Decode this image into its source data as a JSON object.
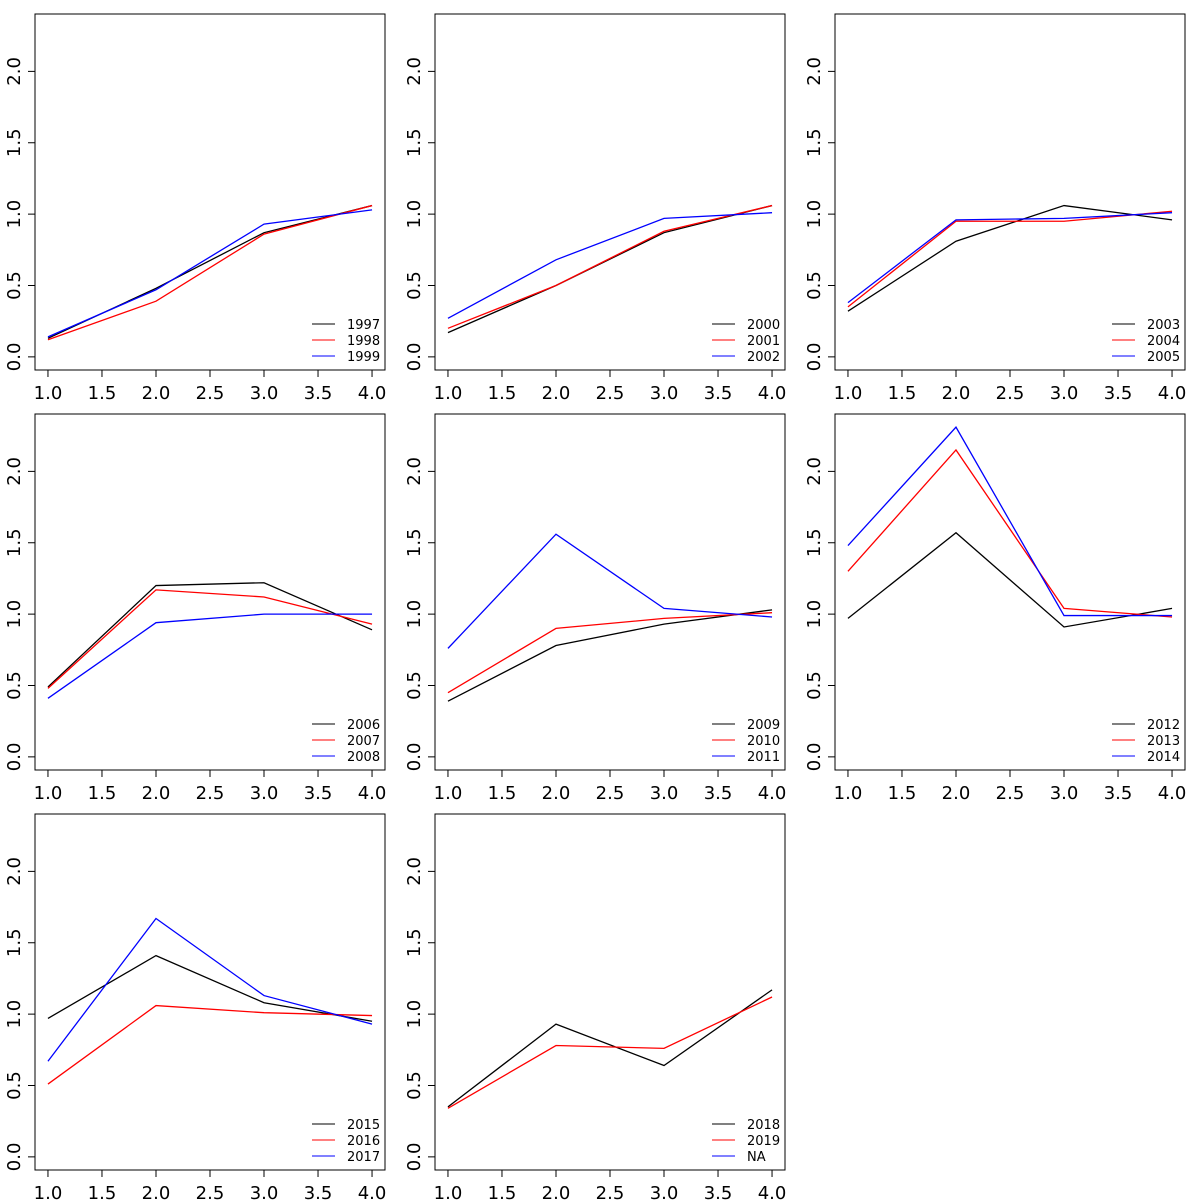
{
  "chart_data": [
    {
      "type": "line",
      "x": [
        1,
        2,
        3,
        4
      ],
      "xlim": [
        0.88,
        4.12
      ],
      "ylim": [
        -0.092,
        2.402
      ],
      "xticks": [
        {
          "value": 1,
          "label": "1.0"
        },
        1.5,
        {
          "value": 2,
          "label": "2.0"
        },
        2.5,
        {
          "value": 3,
          "label": "3.0"
        },
        3.5,
        {
          "value": 4,
          "label": "4.0"
        }
      ],
      "yticks": [
        {
          "value": 0,
          "label": "0.0"
        },
        0.5,
        {
          "value": 1,
          "label": "1.0"
        },
        1.5,
        {
          "value": 2,
          "label": "2.0"
        }
      ],
      "legend": "bottomright",
      "series": [
        {
          "name": "1997",
          "color": "#000000",
          "values": [
            0.13,
            0.48,
            0.87,
            1.06
          ]
        },
        {
          "name": "1998",
          "color": "#ff0000",
          "values": [
            0.12,
            0.39,
            0.86,
            1.06
          ]
        },
        {
          "name": "1999",
          "color": "#0000ff",
          "values": [
            0.14,
            0.47,
            0.93,
            1.03
          ]
        }
      ]
    },
    {
      "type": "line",
      "x": [
        1,
        2,
        3,
        4
      ],
      "xlim": [
        0.88,
        4.12
      ],
      "ylim": [
        -0.092,
        2.402
      ],
      "xticks": [
        {
          "value": 1,
          "label": "1.0"
        },
        1.5,
        {
          "value": 2,
          "label": "2.0"
        },
        2.5,
        {
          "value": 3,
          "label": "3.0"
        },
        3.5,
        {
          "value": 4,
          "label": "4.0"
        }
      ],
      "yticks": [
        {
          "value": 0,
          "label": "0.0"
        },
        0.5,
        {
          "value": 1,
          "label": "1.0"
        },
        1.5,
        {
          "value": 2,
          "label": "2.0"
        }
      ],
      "legend": "bottomright",
      "series": [
        {
          "name": "2000",
          "color": "#000000",
          "values": [
            0.17,
            0.5,
            0.87,
            1.06
          ]
        },
        {
          "name": "2001",
          "color": "#ff0000",
          "values": [
            0.2,
            0.5,
            0.88,
            1.06
          ]
        },
        {
          "name": "2002",
          "color": "#0000ff",
          "values": [
            0.27,
            0.68,
            0.97,
            1.01
          ]
        }
      ]
    },
    {
      "type": "line",
      "x": [
        1,
        2,
        3,
        4
      ],
      "xlim": [
        0.88,
        4.12
      ],
      "ylim": [
        -0.092,
        2.402
      ],
      "xticks": [
        {
          "value": 1,
          "label": "1.0"
        },
        1.5,
        {
          "value": 2,
          "label": "2.0"
        },
        2.5,
        {
          "value": 3,
          "label": "3.0"
        },
        3.5,
        {
          "value": 4,
          "label": "4.0"
        }
      ],
      "yticks": [
        {
          "value": 0,
          "label": "0.0"
        },
        0.5,
        {
          "value": 1,
          "label": "1.0"
        },
        1.5,
        {
          "value": 2,
          "label": "2.0"
        }
      ],
      "legend": "bottomright",
      "series": [
        {
          "name": "2003",
          "color": "#000000",
          "values": [
            0.32,
            0.81,
            1.06,
            0.96
          ]
        },
        {
          "name": "2004",
          "color": "#ff0000",
          "values": [
            0.35,
            0.95,
            0.95,
            1.02
          ]
        },
        {
          "name": "2005",
          "color": "#0000ff",
          "values": [
            0.38,
            0.96,
            0.97,
            1.01
          ]
        }
      ]
    },
    {
      "type": "line",
      "x": [
        1,
        2,
        3,
        4
      ],
      "xlim": [
        0.88,
        4.12
      ],
      "ylim": [
        -0.092,
        2.402
      ],
      "xticks": [
        {
          "value": 1,
          "label": "1.0"
        },
        1.5,
        {
          "value": 2,
          "label": "2.0"
        },
        2.5,
        {
          "value": 3,
          "label": "3.0"
        },
        3.5,
        {
          "value": 4,
          "label": "4.0"
        }
      ],
      "yticks": [
        {
          "value": 0,
          "label": "0.0"
        },
        0.5,
        {
          "value": 1,
          "label": "1.0"
        },
        1.5,
        {
          "value": 2,
          "label": "2.0"
        }
      ],
      "legend": "bottomright",
      "series": [
        {
          "name": "2006",
          "color": "#000000",
          "values": [
            0.49,
            1.2,
            1.22,
            0.89
          ]
        },
        {
          "name": "2007",
          "color": "#ff0000",
          "values": [
            0.48,
            1.17,
            1.12,
            0.93
          ]
        },
        {
          "name": "2008",
          "color": "#0000ff",
          "values": [
            0.41,
            0.94,
            1.0,
            1.0
          ]
        }
      ]
    },
    {
      "type": "line",
      "x": [
        1,
        2,
        3,
        4
      ],
      "xlim": [
        0.88,
        4.12
      ],
      "ylim": [
        -0.092,
        2.402
      ],
      "xticks": [
        {
          "value": 1,
          "label": "1.0"
        },
        1.5,
        {
          "value": 2,
          "label": "2.0"
        },
        2.5,
        {
          "value": 3,
          "label": "3.0"
        },
        3.5,
        {
          "value": 4,
          "label": "4.0"
        }
      ],
      "yticks": [
        {
          "value": 0,
          "label": "0.0"
        },
        0.5,
        {
          "value": 1,
          "label": "1.0"
        },
        1.5,
        {
          "value": 2,
          "label": "2.0"
        }
      ],
      "legend": "bottomright",
      "series": [
        {
          "name": "2009",
          "color": "#000000",
          "values": [
            0.39,
            0.78,
            0.93,
            1.03
          ]
        },
        {
          "name": "2010",
          "color": "#ff0000",
          "values": [
            0.45,
            0.9,
            0.97,
            1.01
          ]
        },
        {
          "name": "2011",
          "color": "#0000ff",
          "values": [
            0.76,
            1.56,
            1.04,
            0.98
          ]
        }
      ]
    },
    {
      "type": "line",
      "x": [
        1,
        2,
        3,
        4
      ],
      "xlim": [
        0.88,
        4.12
      ],
      "ylim": [
        -0.092,
        2.402
      ],
      "xticks": [
        {
          "value": 1,
          "label": "1.0"
        },
        1.5,
        {
          "value": 2,
          "label": "2.0"
        },
        2.5,
        {
          "value": 3,
          "label": "3.0"
        },
        3.5,
        {
          "value": 4,
          "label": "4.0"
        }
      ],
      "yticks": [
        {
          "value": 0,
          "label": "0.0"
        },
        0.5,
        {
          "value": 1,
          "label": "1.0"
        },
        1.5,
        {
          "value": 2,
          "label": "2.0"
        }
      ],
      "legend": "bottomright",
      "series": [
        {
          "name": "2012",
          "color": "#000000",
          "values": [
            0.97,
            1.57,
            0.91,
            1.04
          ]
        },
        {
          "name": "2013",
          "color": "#ff0000",
          "values": [
            1.3,
            2.15,
            1.04,
            0.98
          ]
        },
        {
          "name": "2014",
          "color": "#0000ff",
          "values": [
            1.48,
            2.31,
            0.99,
            0.99
          ]
        }
      ]
    },
    {
      "type": "line",
      "x": [
        1,
        2,
        3,
        4
      ],
      "xlim": [
        0.88,
        4.12
      ],
      "ylim": [
        -0.092,
        2.402
      ],
      "xticks": [
        {
          "value": 1,
          "label": "1.0"
        },
        1.5,
        {
          "value": 2,
          "label": "2.0"
        },
        2.5,
        {
          "value": 3,
          "label": "3.0"
        },
        3.5,
        {
          "value": 4,
          "label": "4.0"
        }
      ],
      "yticks": [
        {
          "value": 0,
          "label": "0.0"
        },
        0.5,
        {
          "value": 1,
          "label": "1.0"
        },
        1.5,
        {
          "value": 2,
          "label": "2.0"
        }
      ],
      "legend": "bottomright",
      "series": [
        {
          "name": "2015",
          "color": "#000000",
          "values": [
            0.97,
            1.41,
            1.08,
            0.95
          ]
        },
        {
          "name": "2016",
          "color": "#ff0000",
          "values": [
            0.51,
            1.06,
            1.01,
            0.99
          ]
        },
        {
          "name": "2017",
          "color": "#0000ff",
          "values": [
            0.67,
            1.67,
            1.13,
            0.93
          ]
        }
      ]
    },
    {
      "type": "line",
      "x": [
        1,
        2,
        3,
        4
      ],
      "xlim": [
        0.88,
        4.12
      ],
      "ylim": [
        -0.092,
        2.402
      ],
      "xticks": [
        {
          "value": 1,
          "label": "1.0"
        },
        1.5,
        {
          "value": 2,
          "label": "2.0"
        },
        2.5,
        {
          "value": 3,
          "label": "3.0"
        },
        3.5,
        {
          "value": 4,
          "label": "4.0"
        }
      ],
      "yticks": [
        {
          "value": 0,
          "label": "0.0"
        },
        0.5,
        {
          "value": 1,
          "label": "1.0"
        },
        1.5,
        {
          "value": 2,
          "label": "2.0"
        }
      ],
      "legend": "bottomright",
      "series": [
        {
          "name": "2018",
          "color": "#000000",
          "values": [
            0.35,
            0.93,
            0.64,
            1.17
          ]
        },
        {
          "name": "2019",
          "color": "#ff0000",
          "values": [
            0.34,
            0.78,
            0.76,
            1.12
          ]
        },
        {
          "name": "NA",
          "color": "#0000ff",
          "values": [
            null,
            null,
            null,
            null
          ]
        }
      ]
    }
  ]
}
